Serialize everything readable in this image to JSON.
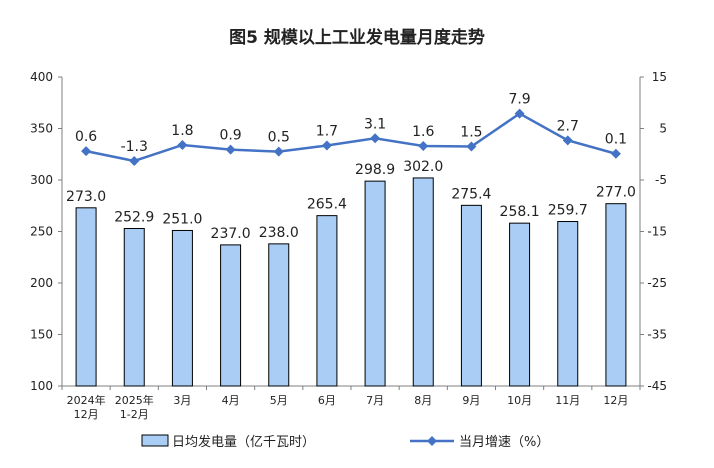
{
  "chart_data": {
    "type": "bar",
    "title": "图5  规模以上工业发电量月度走势",
    "categories": [
      [
        "2024年",
        "12月"
      ],
      [
        "2025年",
        "1-2月"
      ],
      [
        "3月"
      ],
      [
        "4月"
      ],
      [
        "5月"
      ],
      [
        "6月"
      ],
      [
        "7月"
      ],
      [
        "8月"
      ],
      [
        "9月"
      ],
      [
        "10月"
      ],
      [
        "11月"
      ],
      [
        "12月"
      ]
    ],
    "series": [
      {
        "name": "日均发电量（亿千瓦时）",
        "type": "bar",
        "axis": "left",
        "values": [
          273.0,
          252.9,
          251.0,
          237.0,
          238.0,
          265.4,
          298.9,
          302.0,
          275.4,
          258.1,
          259.7,
          277.0
        ],
        "labels": [
          "273.0",
          "252.9",
          "251.0",
          "237.0",
          "238.0",
          "265.4",
          "298.9",
          "302.0",
          "275.4",
          "258.1",
          "259.7",
          "277.0"
        ],
        "color": "#A9CDF5"
      },
      {
        "name": "当月增速（%）",
        "type": "line",
        "axis": "right",
        "values": [
          0.6,
          -1.3,
          1.8,
          0.9,
          0.5,
          1.7,
          3.1,
          1.6,
          1.5,
          7.9,
          2.7,
          0.1
        ],
        "labels": [
          "0.6",
          "-1.3",
          "1.8",
          "0.9",
          "0.5",
          "1.7",
          "3.1",
          "1.6",
          "1.5",
          "7.9",
          "2.7",
          "0.1"
        ],
        "color": "#4472C4"
      }
    ],
    "left_axis": {
      "range": [
        100,
        400
      ],
      "ticks": [
        "100",
        "150",
        "200",
        "250",
        "300",
        "350",
        "400"
      ]
    },
    "right_axis": {
      "range": [
        -45,
        15
      ],
      "ticks": [
        "-45",
        "-35",
        "-25",
        "-15",
        "-5",
        "5",
        "15"
      ]
    },
    "grid": false,
    "legend": "bottom"
  }
}
